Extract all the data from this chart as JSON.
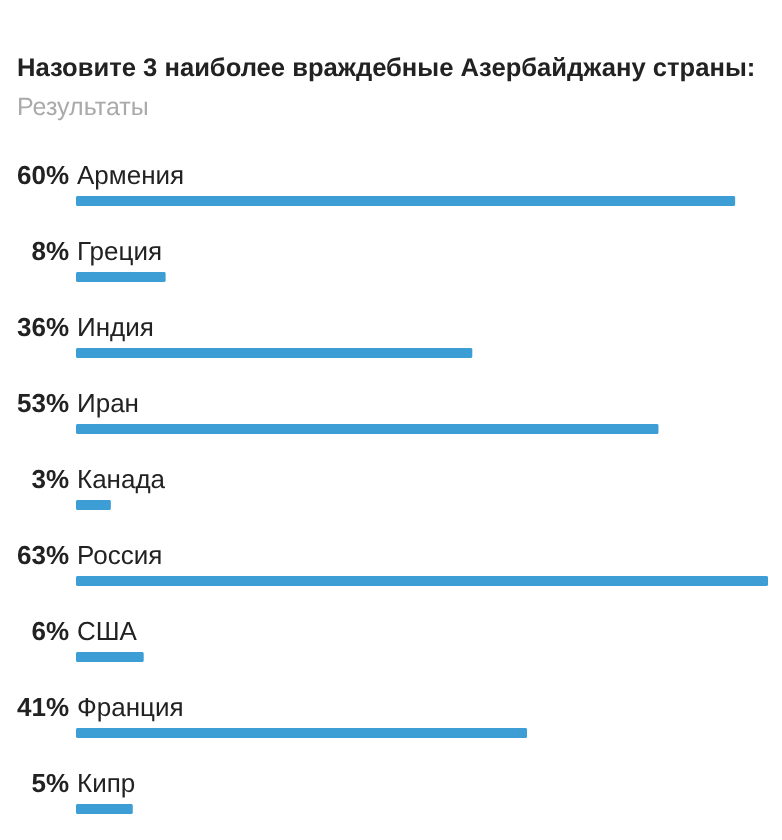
{
  "chart_data": {
    "type": "bar",
    "orientation": "horizontal",
    "title": "Назовите 3 наиболее враждебные Азербайджану страны:",
    "subtitle": "Результаты",
    "categories": [
      "Армения",
      "Греция",
      "Индия",
      "Иран",
      "Канада",
      "Россия",
      "США",
      "Франция",
      "Кипр"
    ],
    "values": [
      60,
      8,
      36,
      53,
      3,
      63,
      6,
      41,
      5
    ],
    "value_labels": [
      "60%",
      "8%",
      "36%",
      "53%",
      "3%",
      "63%",
      "6%",
      "41%",
      "5%"
    ],
    "color": "#3d9ed6"
  }
}
